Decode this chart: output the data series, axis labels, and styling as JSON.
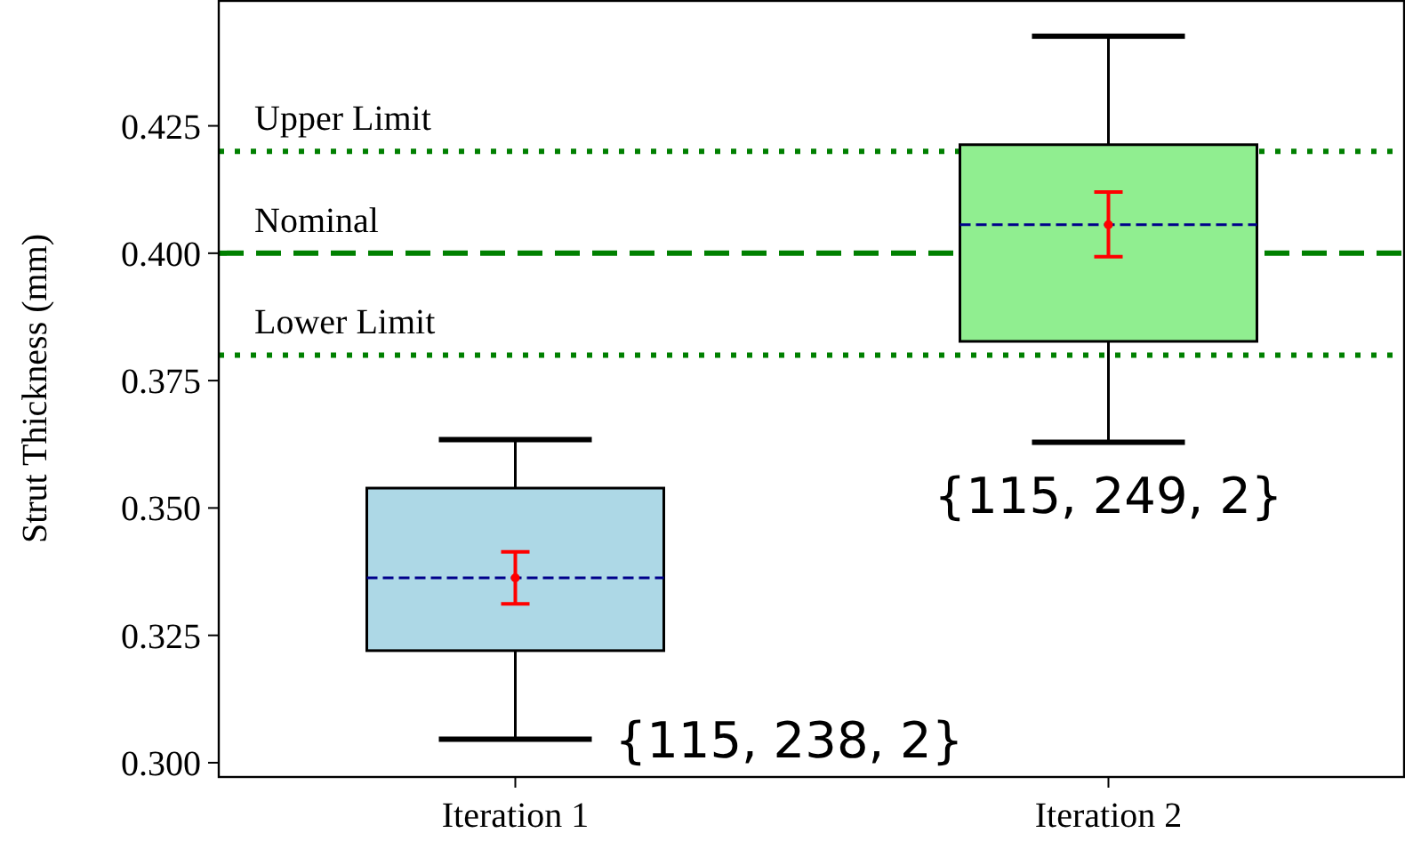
{
  "chart_data": {
    "type": "box",
    "ylabel": "Strut Thickness (mm)",
    "categories": [
      "Iteration 1",
      "Iteration 2"
    ],
    "colors": [
      "#add8e6",
      "#90ee90"
    ],
    "boxes": [
      {
        "low": 0.3046,
        "q1": 0.322,
        "median": 0.3363,
        "q3": 0.3539,
        "high": 0.3634
      },
      {
        "low": 0.3629,
        "q1": 0.3827,
        "median": 0.4056,
        "q3": 0.4213,
        "high": 0.4426
      }
    ],
    "series": [
      {
        "type": "scatter",
        "color": "#ff0000",
        "marker": "circle",
        "x": [
          "Iteration 1",
          "Iteration 2"
        ],
        "values": [
          0.3363,
          0.4056
        ],
        "errors": [
          [
            0.3312,
            0.3414
          ],
          [
            0.3993,
            0.412
          ]
        ]
      }
    ],
    "ylim": [
      0.2972,
      0.4497
    ],
    "yticks": [
      {
        "value": 0.3,
        "label": "0.300"
      },
      0.325,
      {
        "value": 0.35,
        "label": "0.350"
      },
      0.375,
      {
        "value": 0.4,
        "label": "0.400"
      },
      0.425
    ],
    "ref_lines": [
      {
        "axis": "y",
        "value": 0.42,
        "label": "Upper Limit",
        "color": "#008000",
        "line_style": "dotted"
      },
      {
        "axis": "y",
        "value": 0.4,
        "label": "Nominal",
        "color": "#008000",
        "line_style": "dashed"
      },
      {
        "axis": "y",
        "value": 0.38,
        "label": "Lower Limit",
        "color": "#008000",
        "line_style": "dotted"
      }
    ],
    "annotations": [
      {
        "text": "{115, 238, 2}",
        "x": "Iteration 1",
        "y": 0.3046
      },
      {
        "text": "{115, 249, 2}",
        "x": "Iteration 2",
        "y": 0.3629
      }
    ],
    "grid": false
  }
}
